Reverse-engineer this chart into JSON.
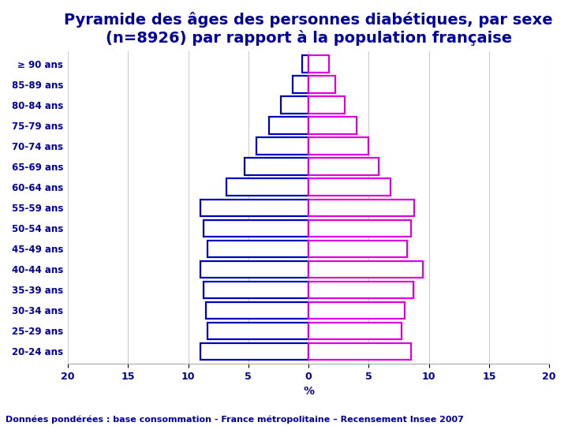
{
  "title_line1": "Pyramide des âges des personnes diabétiques, par sexe",
  "title_line2": "(n=8926) par rapport à la population française",
  "footnote": "Données pondérées : base consommation - France métropolitaine – Recensement Insee 2007",
  "age_groups": [
    "≥ 90 ans",
    "85-89 ans",
    "80-84 ans",
    "75-79 ans",
    "70-74 ans",
    "65-69 ans",
    "60-64 ans",
    "55-59 ans",
    "50-54 ans",
    "45-49 ans",
    "40-44 ans",
    "35-39 ans",
    "30-34 ans",
    "25-29 ans",
    "20-24 ans"
  ],
  "men_values": [
    0.5,
    1.3,
    2.3,
    3.3,
    4.3,
    5.3,
    6.8,
    9.0,
    8.7,
    8.4,
    9.0,
    8.7,
    8.5,
    8.4,
    9.0
  ],
  "women_values": [
    1.7,
    2.2,
    3.0,
    4.0,
    5.0,
    5.8,
    6.8,
    8.8,
    8.5,
    8.2,
    9.5,
    8.7,
    8.0,
    7.7,
    8.5
  ],
  "men_color": "#0000bb",
  "women_color": "#dd00dd",
  "xlim": [
    -20,
    20
  ],
  "xticks": [
    -20,
    -15,
    -10,
    -5,
    0,
    5,
    10,
    15,
    20
  ],
  "xlabel": "%",
  "title_color": "#000099",
  "title_fontsize": 14,
  "label_fontsize": 8.5,
  "tick_fontsize": 9,
  "footnote_color": "#000099",
  "footnote_fontsize": 8,
  "background_color": "#ffffff",
  "bar_height": 0.82,
  "linewidth": 1.6
}
